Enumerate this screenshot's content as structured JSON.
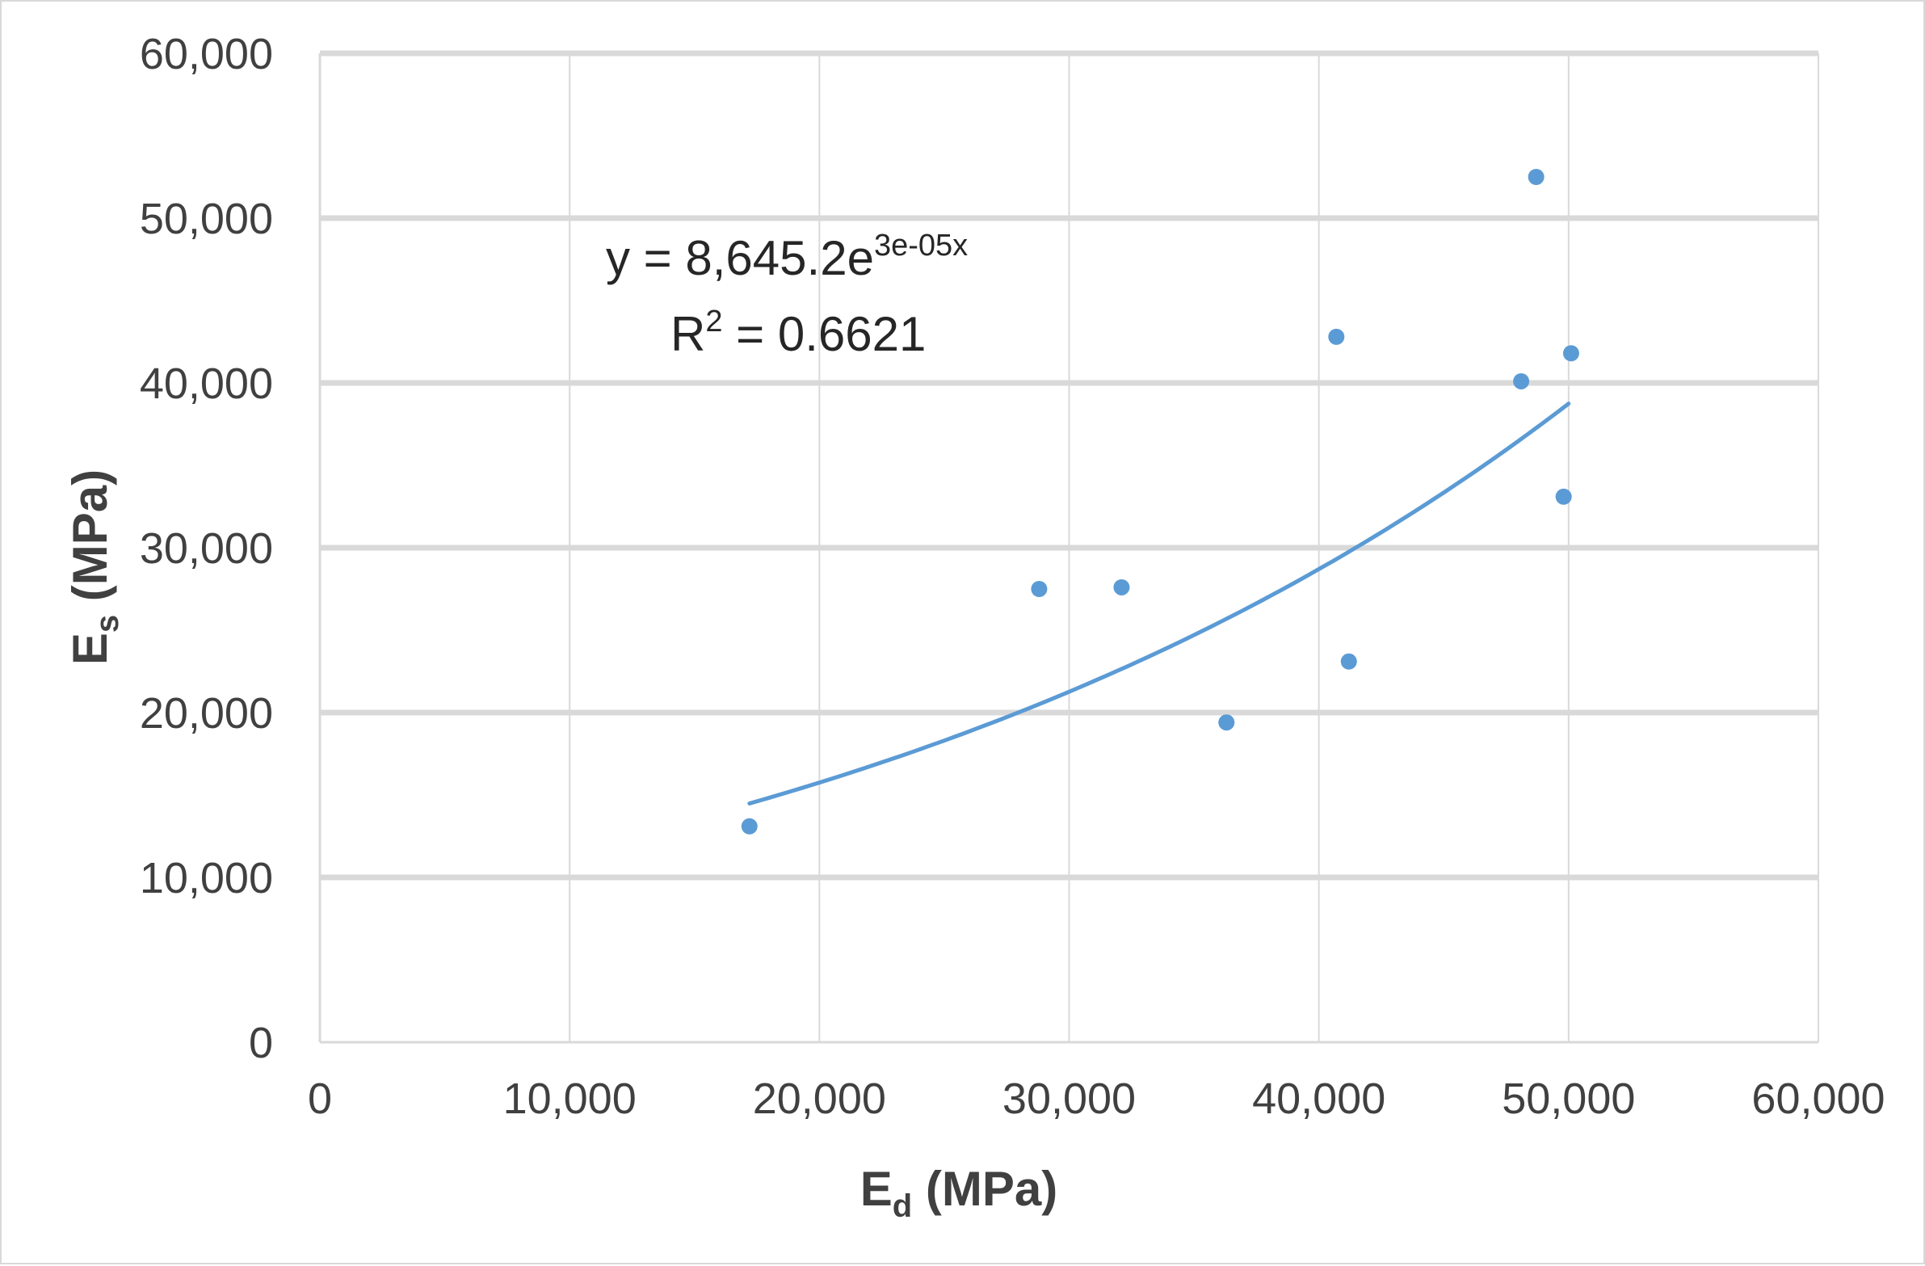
{
  "chart_data": {
    "type": "scatter",
    "title": "",
    "xlabel": {
      "main": "E",
      "sub": "d",
      "unit": " (MPa)"
    },
    "ylabel": {
      "main": "E",
      "sub": "s",
      "unit": " (MPa)"
    },
    "xlim": [
      0,
      60000
    ],
    "ylim": [
      0,
      60000
    ],
    "x_ticks": [
      0,
      10000,
      20000,
      30000,
      40000,
      50000,
      60000
    ],
    "y_ticks": [
      0,
      10000,
      20000,
      30000,
      40000,
      50000,
      60000
    ],
    "x_tick_labels": [
      "0",
      "10,000",
      "20,000",
      "30,000",
      "40,000",
      "50,000",
      "60,000"
    ],
    "y_tick_labels": [
      "0",
      "10,000",
      "20,000",
      "30,000",
      "40,000",
      "50,000",
      "60,000"
    ],
    "grid": true,
    "legend": false,
    "series": [
      {
        "marker_color": "#5b9bd5",
        "points": [
          {
            "x": 17200,
            "y": 13100
          },
          {
            "x": 28800,
            "y": 27500
          },
          {
            "x": 32100,
            "y": 27600
          },
          {
            "x": 36300,
            "y": 19400
          },
          {
            "x": 40700,
            "y": 42800
          },
          {
            "x": 41200,
            "y": 23100
          },
          {
            "x": 48100,
            "y": 40100
          },
          {
            "x": 48700,
            "y": 52500
          },
          {
            "x": 49800,
            "y": 33100
          },
          {
            "x": 50100,
            "y": 41800
          }
        ]
      }
    ],
    "trendline": {
      "type": "exponential",
      "coefficient": 8645.2,
      "exponent": 3e-05,
      "x_from": 17200,
      "x_to": 50000,
      "color": "#5b9bd5",
      "equation": {
        "prefix": "y = 8,645.2e",
        "superscript": "3e-05x"
      },
      "r_squared": {
        "prefix": "R",
        "superscript": "2",
        "suffix": " = 0.6621"
      }
    },
    "colors": {
      "grid": "#d9d9d9",
      "axis_text": "#404040",
      "marker": "#5b9bd5"
    }
  }
}
